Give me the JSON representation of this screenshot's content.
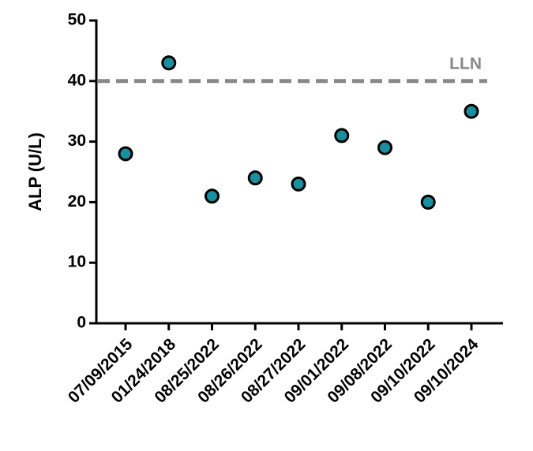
{
  "chart_data": {
    "type": "scatter",
    "y_label": "ALP (U/L)",
    "categories": [
      "07/09/2015",
      "01/24/2018",
      "08/25/2022",
      "08/26/2022",
      "08/27/2022",
      "09/01/2022",
      "09/08/2022",
      "09/10/2022",
      "09/10/2024"
    ],
    "values": [
      28,
      43,
      21,
      24,
      23,
      31,
      29,
      20,
      35
    ],
    "color": "#1a8fa0",
    "ylim": [
      0,
      50
    ],
    "yticks": [
      0,
      10,
      20,
      30,
      40,
      50
    ],
    "reference_line": {
      "value": 40,
      "label": "LLN",
      "color": "#888888"
    }
  }
}
